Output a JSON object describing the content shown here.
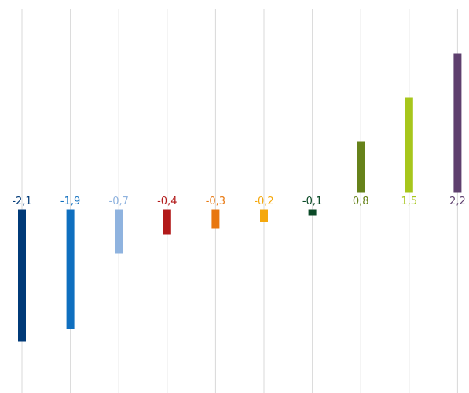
{
  "chart_data": {
    "type": "bar",
    "categories": [
      "",
      "",
      "",
      "",
      "",
      "",
      "",
      "",
      "",
      ""
    ],
    "values": [
      -2.1,
      -1.9,
      -0.7,
      -0.4,
      -0.3,
      -0.2,
      -0.1,
      0.8,
      1.5,
      2.2
    ],
    "value_labels": [
      "-2,1",
      "-1,9",
      "-0,7",
      "-0,4",
      "-0,3",
      "-0,2",
      "-0,1",
      "0,8",
      "1,5",
      "2,2"
    ],
    "colors": [
      "#003a78",
      "#0f6fbf",
      "#8fb3df",
      "#b21a1a",
      "#e8770f",
      "#f5a80d",
      "#0b4a27",
      "#66821a",
      "#a7c61c",
      "#5e3f6e"
    ],
    "grid": "vertical",
    "title": "",
    "xlabel": "",
    "ylabel": ""
  }
}
